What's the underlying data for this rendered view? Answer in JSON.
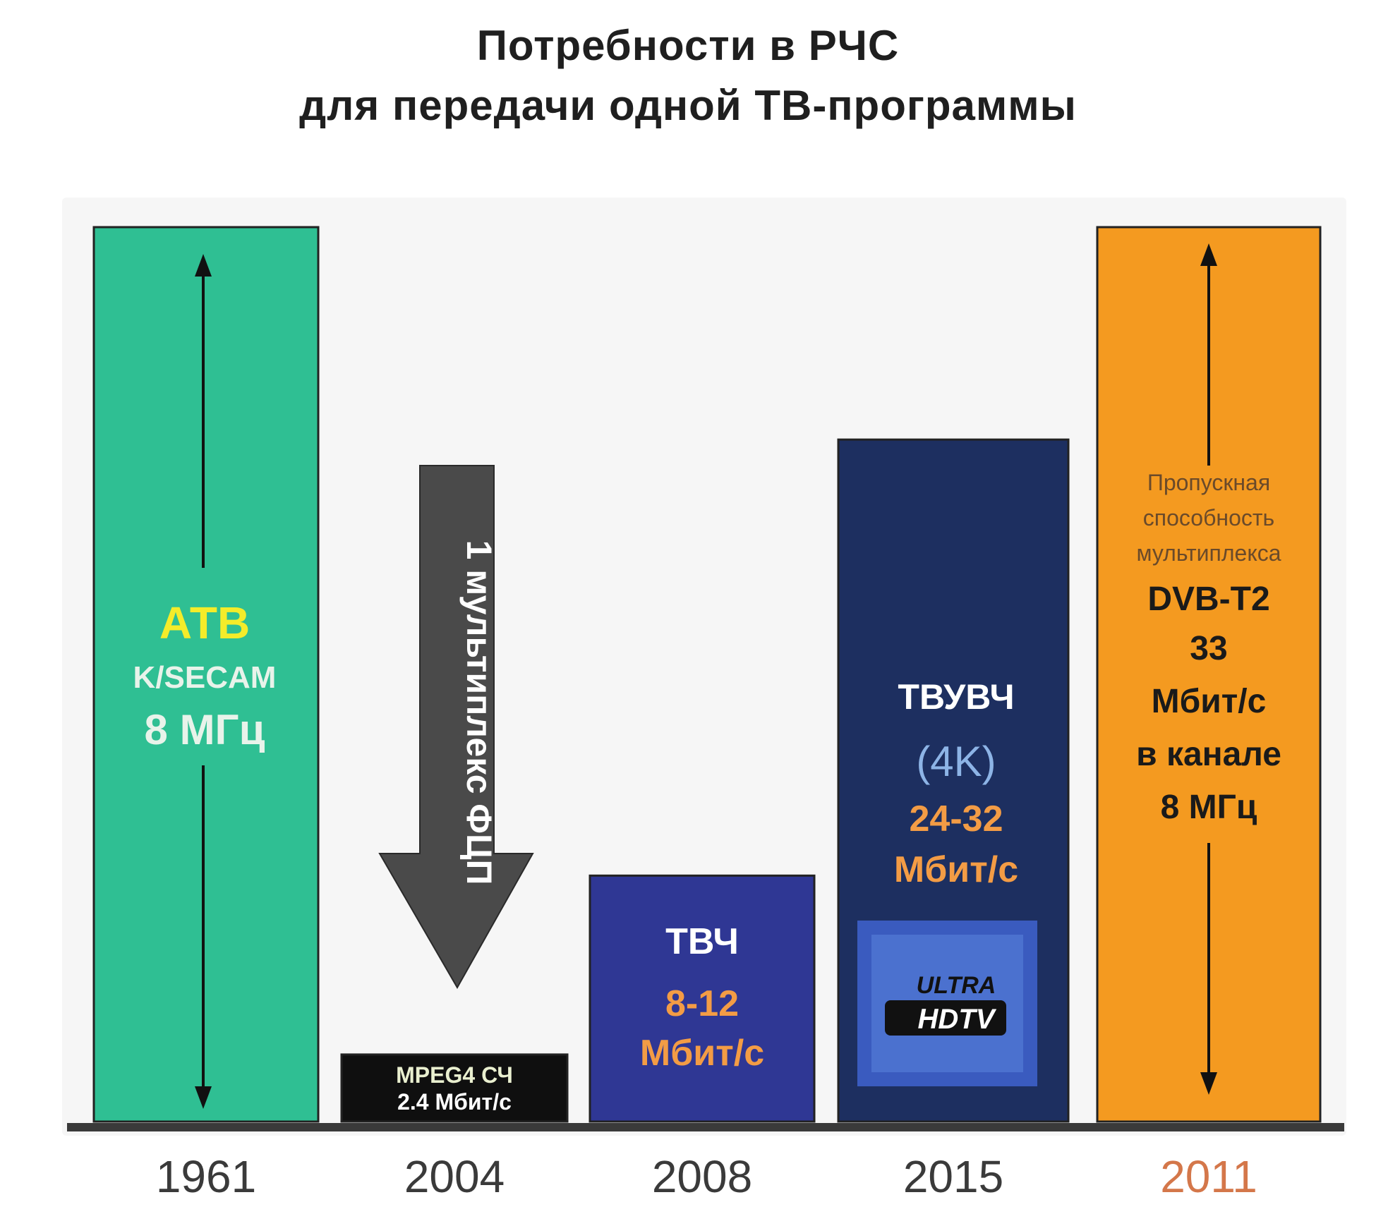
{
  "chart_data": {
    "type": "bar",
    "title": "Потребности в РЧС",
    "subtitle": "для передачи одной ТВ-программы",
    "categories": [
      "1961",
      "2004",
      "2008",
      "2015",
      "2011"
    ],
    "values": [
      8,
      0.6,
      2.2,
      6.1,
      8
    ],
    "ylim": [
      0,
      8
    ],
    "grid": false,
    "legend": "none",
    "bars": [
      {
        "year": "1961",
        "value": 8,
        "color": "#2fbf93",
        "year_color": "#3a3a3a",
        "lines": [
          {
            "text": "АТВ",
            "color": "#f4ec2a"
          },
          {
            "text": "K/SECAM",
            "color": "#e8f3ea"
          },
          {
            "text": "8 МГц",
            "color": "#e8f3ea"
          }
        ]
      },
      {
        "year": "2004",
        "value": 0.6,
        "color": "#0f0f0f",
        "year_color": "#3a3a3a",
        "lines": [
          {
            "text": "MPEG4 СЧ",
            "color": "#e9efcf"
          },
          {
            "text": "2.4 Мбит/с",
            "color": "#ffffff"
          }
        ]
      },
      {
        "year": "2008",
        "value": 2.2,
        "color": "#2f3794",
        "year_color": "#3a3a3a",
        "lines": [
          {
            "text": "ТВЧ",
            "color": "#ffffff"
          },
          {
            "text": "8-12",
            "color": "#f39c45"
          },
          {
            "text": "Мбит/с",
            "color": "#f39c45"
          }
        ]
      },
      {
        "year": "2015",
        "value": 6.1,
        "color": "#1d2f60",
        "year_color": "#3a3a3a",
        "lines": [
          {
            "text": "ТВУВЧ",
            "color": "#ffffff"
          },
          {
            "text": "(4K)",
            "color": "#8db4e6"
          },
          {
            "text": "24-32",
            "color": "#f39c45"
          },
          {
            "text": "Мбит/с",
            "color": "#f39c45"
          }
        ],
        "logo": [
          "ULTRA",
          "HDTV"
        ]
      },
      {
        "year": "2011",
        "value": 8,
        "color": "#f49a20",
        "year_color": "#d4774a",
        "small_lines": [
          "Пропускная",
          "способность",
          "мультиплекса"
        ],
        "lines": [
          {
            "text": "DVB-T2",
            "color": "#1a1a1a"
          },
          {
            "text": "33",
            "color": "#1a1a1a"
          },
          {
            "text": "Мбит/с",
            "color": "#1a1a1a"
          },
          {
            "text": "в канале",
            "color": "#1a1a1a"
          },
          {
            "text": "8 МГц",
            "color": "#1a1a1a"
          }
        ]
      }
    ],
    "annotation": {
      "text": "1 мультиплекс ФЦП",
      "direction": "down",
      "color": "#4a4a4a"
    }
  }
}
